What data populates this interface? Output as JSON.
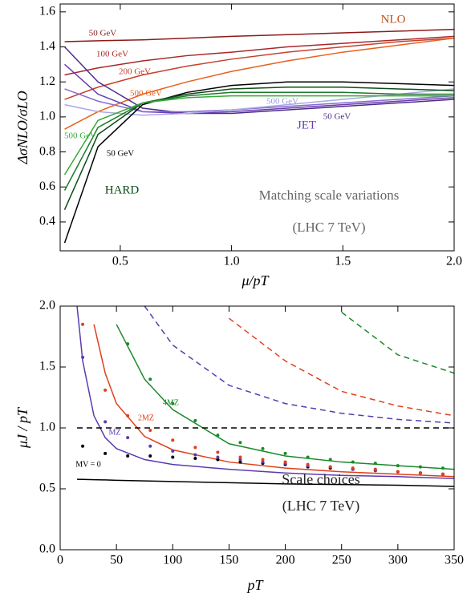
{
  "chart_data": [
    {
      "type": "line",
      "x_label": "μ/pT",
      "y_label": "ΔσNLO/σLO",
      "xlim": [
        0.23,
        2.0
      ],
      "ylim": [
        0.235,
        1.645
      ],
      "xticks": [
        0.5,
        {
          "value": 1.0,
          "label": "1.0"
        },
        1.5,
        {
          "value": 2.0,
          "label": "2.0"
        }
      ],
      "yticks": [
        0.4,
        0.6,
        0.8,
        {
          "value": 1.0,
          "label": "1.0"
        },
        1.2,
        1.4,
        1.6
      ],
      "x": [
        0.25,
        0.4,
        0.6,
        0.8,
        1.0,
        1.25,
        1.5,
        1.75,
        2.0
      ],
      "series": [
        {
          "color": "#8b1a1a",
          "values": [
            1.43,
            1.435,
            1.44,
            1.45,
            1.46,
            1.47,
            1.48,
            1.49,
            1.5
          ]
        },
        {
          "color": "#a8282a",
          "values": [
            1.24,
            1.28,
            1.32,
            1.35,
            1.37,
            1.4,
            1.42,
            1.44,
            1.46
          ]
        },
        {
          "color": "#c8402a",
          "values": [
            1.1,
            1.17,
            1.24,
            1.29,
            1.33,
            1.37,
            1.4,
            1.43,
            1.45
          ]
        },
        {
          "color": "#e8601c",
          "values": [
            0.93,
            1.03,
            1.13,
            1.2,
            1.26,
            1.32,
            1.37,
            1.41,
            1.45
          ]
        },
        {
          "color": "#4b2a8a",
          "values": [
            1.4,
            1.2,
            1.05,
            1.02,
            1.02,
            1.04,
            1.06,
            1.08,
            1.1
          ]
        },
        {
          "color": "#6a3db0",
          "values": [
            1.3,
            1.13,
            1.03,
            1.02,
            1.03,
            1.05,
            1.07,
            1.09,
            1.11
          ]
        },
        {
          "color": "#8a6ad0",
          "values": [
            1.16,
            1.09,
            1.03,
            1.03,
            1.04,
            1.06,
            1.08,
            1.1,
            1.12
          ]
        },
        {
          "color": "#a8a8e8",
          "values": [
            1.07,
            1.03,
            1.01,
            1.02,
            1.04,
            1.07,
            1.1,
            1.13,
            1.16
          ]
        },
        {
          "color": "#000000",
          "values": [
            0.28,
            0.83,
            1.07,
            1.14,
            1.18,
            1.2,
            1.2,
            1.19,
            1.18
          ]
        },
        {
          "color": "#0b4d1a",
          "values": [
            0.47,
            0.9,
            1.08,
            1.13,
            1.16,
            1.17,
            1.17,
            1.16,
            1.15
          ]
        },
        {
          "color": "#1d7a2a",
          "values": [
            0.58,
            0.94,
            1.08,
            1.12,
            1.14,
            1.14,
            1.14,
            1.13,
            1.13
          ]
        },
        {
          "color": "#3aa83a",
          "values": [
            0.67,
            0.98,
            1.08,
            1.11,
            1.12,
            1.12,
            1.12,
            1.12,
            1.12
          ]
        }
      ],
      "annotations": [
        "NLO",
        "50 GeV",
        "100 GeV",
        "200 GeV",
        "500 GeV",
        "500 GeV",
        "JET",
        "50 GeV",
        "500 GeV",
        "50 GeV",
        "HARD",
        "Matching scale variations",
        "(LHC 7 TeV)"
      ]
    },
    {
      "type": "line",
      "x_label": "pT",
      "y_label": "μJ / pT",
      "xlim": [
        0,
        350
      ],
      "ylim": [
        0,
        2
      ],
      "xticks": [
        0,
        50,
        100,
        150,
        200,
        250,
        300,
        350
      ],
      "yticks": [
        {
          "value": 0,
          "label": "0.0"
        },
        0.5,
        {
          "value": 1,
          "label": "1.0"
        },
        1.5,
        {
          "value": 2,
          "label": "2.0"
        }
      ],
      "x": [
        15,
        20,
        30,
        40,
        50,
        75,
        100,
        150,
        200,
        250,
        300,
        350
      ],
      "series": [
        {
          "color": "#5b3bb0",
          "values": [
            2.0,
            1.55,
            1.1,
            0.92,
            0.83,
            0.74,
            0.7,
            0.66,
            0.63,
            0.61,
            0.6,
            0.585
          ]
        },
        {
          "color": "#e0401a",
          "values": [
            null,
            null,
            1.85,
            1.45,
            1.2,
            0.93,
            0.82,
            0.72,
            0.67,
            0.64,
            0.62,
            0.6
          ]
        },
        {
          "color": "#1a8a2a",
          "values": [
            null,
            null,
            null,
            null,
            1.85,
            1.4,
            1.15,
            0.87,
            0.77,
            0.72,
            0.69,
            0.66
          ]
        },
        {
          "color": "#000000",
          "values": [
            0.578,
            0.577,
            0.575,
            0.573,
            0.57,
            0.565,
            0.56,
            0.55,
            0.54,
            0.535,
            0.53,
            0.52
          ]
        },
        {
          "color": "#5b3bb0",
          "dash": true,
          "values": [
            null,
            null,
            null,
            null,
            null,
            2.0,
            1.68,
            1.35,
            1.2,
            1.12,
            1.07,
            1.04
          ]
        },
        {
          "color": "#e0401a",
          "dash": true,
          "values": [
            null,
            null,
            null,
            null,
            null,
            null,
            null,
            1.9,
            1.55,
            1.3,
            1.18,
            1.1
          ]
        },
        {
          "color": "#1a8a2a",
          "dash": true,
          "values": [
            null,
            null,
            null,
            null,
            null,
            null,
            null,
            null,
            null,
            1.95,
            1.6,
            1.45
          ]
        },
        {
          "color": "#000000",
          "dash": true,
          "values": [
            1,
            1,
            1,
            1,
            1,
            1,
            1,
            1,
            1,
            1,
            1,
            1
          ]
        }
      ],
      "dot_x": [
        20,
        40,
        60,
        80,
        100,
        120,
        140,
        160,
        180,
        200,
        220,
        240,
        260,
        280,
        300,
        320,
        340
      ],
      "dot_series": [
        {
          "color": "#000000",
          "values": [
            0.85,
            0.79,
            0.77,
            0.77,
            0.76,
            0.75,
            0.74,
            0.72,
            0.71,
            0.7,
            0.68,
            0.67,
            0.66,
            0.65,
            0.64,
            0.63,
            0.62
          ]
        },
        {
          "color": "#5b3bb0",
          "values": [
            1.58,
            1.05,
            0.92,
            0.85,
            0.81,
            0.78,
            0.76,
            0.74,
            0.72,
            0.71,
            0.69,
            0.68,
            0.66,
            0.65,
            0.64,
            0.63,
            0.62
          ]
        },
        {
          "color": "#e0401a",
          "values": [
            1.85,
            1.31,
            1.1,
            0.98,
            0.9,
            0.84,
            0.8,
            0.76,
            0.74,
            0.72,
            0.7,
            0.68,
            0.67,
            0.66,
            0.64,
            0.63,
            0.62
          ]
        },
        {
          "color": "#1a8a2a",
          "values": [
            null,
            null,
            1.69,
            1.4,
            1.2,
            1.06,
            0.94,
            0.88,
            0.83,
            0.79,
            0.76,
            0.74,
            0.72,
            0.71,
            0.69,
            0.68,
            0.67
          ]
        }
      ],
      "annotations": [
        "4MZ",
        "2MZ",
        "MZ",
        "MV = 0",
        "Scale choices",
        "(LHC 7 TeV)"
      ]
    }
  ]
}
